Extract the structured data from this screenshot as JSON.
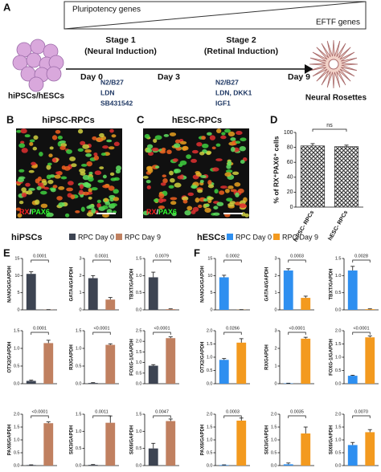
{
  "figure": {
    "panel_a": {
      "label": "A",
      "genes_top": "Pluripotency genes",
      "genes_bottom": "EFTF genes",
      "stage1": "Stage 1",
      "stage1_sub": "(Neural Induction)",
      "stage2": "Stage 2",
      "stage2_sub": "(Retinal Induction)",
      "days": [
        "Day 0",
        "Day 3",
        "Day 9"
      ],
      "stage1_reagents": [
        "N2/B27",
        "LDN",
        "SB431542"
      ],
      "stage2_reagents": [
        "N2/B27",
        "LDN, DKK1",
        "IGF1"
      ],
      "start": "hiPSCs/hESCs",
      "end": "Neural Rosettes"
    },
    "panel_b": {
      "label": "B",
      "title": "hiPSC-RPCs"
    },
    "panel_c": {
      "label": "C",
      "title": "hESC-RPCs"
    },
    "stain": [
      "RX",
      "/",
      "PAX6"
    ],
    "panel_d": {
      "label": "D"
    },
    "panel_e": {
      "label": "E",
      "title": "hiPSCs",
      "legend": [
        {
          "name": "RPC Day 0",
          "color": "#3d4452"
        },
        {
          "name": "RPC Day 9",
          "color": "#c08060"
        }
      ]
    },
    "panel_f": {
      "label": "F",
      "title": "hESCs",
      "legend": [
        {
          "name": "RPC Day 0",
          "color": "#2e8ff0"
        },
        {
          "name": "RPC Day 9",
          "color": "#f39a1f"
        }
      ]
    }
  },
  "chart_data": [
    {
      "type": "bar",
      "ylabel": "% of RX⁺PAX6⁺ cells",
      "categories": [
        "hiPSC- RPCs",
        "hESC- RPCs"
      ],
      "values": [
        82,
        81
      ],
      "errors": [
        3,
        2
      ],
      "colors": [
        "#444444",
        "#444444"
      ],
      "hatch": true,
      "ylim": [
        0,
        100
      ],
      "yticks": [
        0,
        20,
        40,
        60,
        80,
        100
      ],
      "annotation": "ns"
    },
    {
      "type": "bar",
      "ylabel": "NANOG/GAPDH",
      "categories": [
        null,
        null
      ],
      "values": [
        10.5,
        0.05
      ],
      "errors": [
        0.6,
        0.02
      ],
      "colors": [
        "#3d4452",
        "#c08060"
      ],
      "ylim": [
        0,
        15
      ],
      "yticks": [
        0,
        5,
        10,
        15
      ],
      "annotation": "0.0001"
    },
    {
      "type": "bar",
      "ylabel": "GATA4/GAPDH",
      "categories": [
        null,
        null
      ],
      "values": [
        1.85,
        0.6
      ],
      "errors": [
        0.15,
        0.12
      ],
      "colors": [
        "#3d4452",
        "#c08060"
      ],
      "ylim": [
        0,
        3
      ],
      "yticks": [
        0,
        1,
        2,
        3
      ],
      "annotation": "0.0031"
    },
    {
      "type": "bar",
      "ylabel": "TBXT/GAPDH",
      "categories": [
        null,
        null
      ],
      "values": [
        0.95,
        0.02
      ],
      "errors": [
        0.15,
        0.01
      ],
      "colors": [
        "#3d4452",
        "#c08060"
      ],
      "ylim": [
        0,
        1.5
      ],
      "yticks": [
        {
          "value": 0,
          "label": "0.0"
        },
        0.5,
        {
          "value": 1,
          "label": "1.0"
        },
        1.5
      ],
      "annotation": "0.0079"
    },
    {
      "type": "bar",
      "ylabel": "OTX2/GAPDH",
      "categories": [
        null,
        null
      ],
      "values": [
        0.08,
        1.15
      ],
      "errors": [
        0.02,
        0.08
      ],
      "colors": [
        "#3d4452",
        "#c08060"
      ],
      "ylim": [
        0,
        1.5
      ],
      "yticks": [
        {
          "value": 0,
          "label": "0.0"
        },
        0.5,
        {
          "value": 1,
          "label": "1.0"
        },
        1.5
      ],
      "annotation": "0.0001"
    },
    {
      "type": "bar",
      "ylabel": "RX/GAPDH",
      "categories": [
        null,
        null
      ],
      "values": [
        0.02,
        1.1
      ],
      "errors": [
        0.01,
        0.03
      ],
      "colors": [
        "#3d4452",
        "#c08060"
      ],
      "ylim": [
        0,
        1.5
      ],
      "yticks": [
        {
          "value": 0,
          "label": "0.0"
        },
        0.5,
        {
          "value": 1,
          "label": "1.0"
        },
        1.5
      ],
      "annotation": "<0.0001"
    },
    {
      "type": "bar",
      "ylabel": "FOXG-1/GAPDH",
      "categories": [
        null,
        null
      ],
      "values": [
        0.85,
        2.15
      ],
      "errors": [
        0.05,
        0.06
      ],
      "colors": [
        "#3d4452",
        "#c08060"
      ],
      "ylim": [
        0,
        2.5
      ],
      "yticks": [
        {
          "value": 0,
          "label": "0.0"
        },
        0.5,
        {
          "value": 1,
          "label": "1.0"
        },
        1.5,
        {
          "value": 2,
          "label": "2.0"
        },
        2.5
      ],
      "annotation": "<0.0001"
    },
    {
      "type": "bar",
      "ylabel": "PAX6/GAPDH",
      "categories": [
        null,
        null
      ],
      "values": [
        0.02,
        1.65
      ],
      "errors": [
        0.01,
        0.05
      ],
      "colors": [
        "#3d4452",
        "#c08060"
      ],
      "ylim": [
        0,
        2
      ],
      "yticks": [
        {
          "value": 0,
          "label": "0.0"
        },
        0.5,
        {
          "value": 1,
          "label": "1.0"
        },
        1.5,
        {
          "value": 2,
          "label": "2.0"
        }
      ],
      "annotation": "<0.0001"
    },
    {
      "type": "bar",
      "ylabel": "SIX3/GAPDH",
      "categories": [
        null,
        null
      ],
      "values": [
        0.02,
        1.25
      ],
      "errors": [
        0.01,
        0.2
      ],
      "colors": [
        "#3d4452",
        "#c08060"
      ],
      "ylim": [
        0,
        1.5
      ],
      "yticks": [
        {
          "value": 0,
          "label": "0.0"
        },
        0.5,
        {
          "value": 1,
          "label": "1.0"
        },
        1.5
      ],
      "annotation": "0.0011"
    },
    {
      "type": "bar",
      "ylabel": "SIX6/GAPDH",
      "categories": [
        null,
        null
      ],
      "values": [
        0.5,
        1.3
      ],
      "errors": [
        0.15,
        0.06
      ],
      "colors": [
        "#3d4452",
        "#c08060"
      ],
      "ylim": [
        0,
        1.5
      ],
      "yticks": [
        {
          "value": 0,
          "label": "0.0"
        },
        0.5,
        {
          "value": 1,
          "label": "1.0"
        },
        1.5
      ],
      "annotation": "0.0047"
    },
    {
      "type": "bar",
      "ylabel": "NANOG/GAPDH",
      "categories": [
        null,
        null
      ],
      "values": [
        9.5,
        0.05
      ],
      "errors": [
        0.6,
        0.02
      ],
      "colors": [
        "#2e8ff0",
        "#f39a1f"
      ],
      "ylim": [
        0,
        15
      ],
      "yticks": [
        0,
        5,
        10,
        15
      ],
      "annotation": "0.0002"
    },
    {
      "type": "bar",
      "ylabel": "GATA4/GAPDH",
      "categories": [
        null,
        null
      ],
      "values": [
        2.3,
        0.7
      ],
      "errors": [
        0.1,
        0.1
      ],
      "colors": [
        "#2e8ff0",
        "#f39a1f"
      ],
      "ylim": [
        0,
        3
      ],
      "yticks": [
        0,
        1,
        2,
        3
      ],
      "annotation": "0.0003"
    },
    {
      "type": "bar",
      "ylabel": "TBXT/GAPDH",
      "categories": [
        null,
        null
      ],
      "values": [
        1.15,
        0.02
      ],
      "errors": [
        0.12,
        0.01
      ],
      "colors": [
        "#2e8ff0",
        "#f39a1f"
      ],
      "ylim": [
        0,
        1.5
      ],
      "yticks": [
        {
          "value": 0,
          "label": "0.0"
        },
        0.5,
        {
          "value": 1,
          "label": "1.0"
        },
        1.5
      ],
      "annotation": "0.0028"
    },
    {
      "type": "bar",
      "ylabel": "OTX2/GAPDH",
      "categories": [
        null,
        null
      ],
      "values": [
        0.9,
        1.55
      ],
      "errors": [
        0.05,
        0.15
      ],
      "colors": [
        "#2e8ff0",
        "#f39a1f"
      ],
      "ylim": [
        0,
        2
      ],
      "yticks": [
        {
          "value": 0,
          "label": "0.0"
        },
        0.5,
        {
          "value": 1,
          "label": "1.0"
        },
        1.5,
        {
          "value": 2,
          "label": "2.0"
        }
      ],
      "annotation": "0.0266"
    },
    {
      "type": "bar",
      "ylabel": "RX/GAPDH",
      "categories": [
        null,
        null
      ],
      "values": [
        0.02,
        2.55
      ],
      "errors": [
        0.01,
        0.08
      ],
      "colors": [
        "#2e8ff0",
        "#f39a1f"
      ],
      "ylim": [
        0,
        3
      ],
      "yticks": [
        0,
        1,
        2,
        3
      ],
      "annotation": "<0.0001"
    },
    {
      "type": "bar",
      "ylabel": "FOXG-1/GAPDH",
      "categories": [
        null,
        null
      ],
      "values": [
        0.3,
        1.75
      ],
      "errors": [
        0.02,
        0.05
      ],
      "colors": [
        "#2e8ff0",
        "#f39a1f"
      ],
      "ylim": [
        0,
        2
      ],
      "yticks": [
        {
          "value": 0,
          "label": "0.0"
        },
        0.5,
        {
          "value": 1,
          "label": "1.0"
        },
        1.5,
        {
          "value": 2,
          "label": "2.0"
        }
      ],
      "annotation": "<0.0001"
    },
    {
      "type": "bar",
      "ylabel": "PAX6/GAPDH",
      "categories": [
        null,
        null
      ],
      "values": [
        0.02,
        1.75
      ],
      "errors": [
        0.01,
        0.1
      ],
      "colors": [
        "#2e8ff0",
        "#f39a1f"
      ],
      "ylim": [
        0,
        2
      ],
      "yticks": [
        {
          "value": 0,
          "label": "0.0"
        },
        0.5,
        {
          "value": 1,
          "label": "1.0"
        },
        1.5,
        {
          "value": 2,
          "label": "2.0"
        }
      ],
      "annotation": "0.0003"
    },
    {
      "type": "bar",
      "ylabel": "SIX3/GAPDH",
      "categories": [
        null,
        null
      ],
      "values": [
        0.05,
        1.25
      ],
      "errors": [
        0.05,
        0.25
      ],
      "colors": [
        "#2e8ff0",
        "#f39a1f"
      ],
      "ylim": [
        0,
        2
      ],
      "yticks": [
        {
          "value": 0,
          "label": "0.0"
        },
        0.5,
        {
          "value": 1,
          "label": "1.0"
        },
        1.5,
        {
          "value": 2,
          "label": "2.0"
        }
      ],
      "annotation": "0.0035"
    },
    {
      "type": "bar",
      "ylabel": "SIX6/GAPDH",
      "categories": [
        null,
        null
      ],
      "values": [
        0.8,
        1.3
      ],
      "errors": [
        0.1,
        0.1
      ],
      "colors": [
        "#2e8ff0",
        "#f39a1f"
      ],
      "ylim": [
        0,
        2
      ],
      "yticks": [
        {
          "value": 0,
          "label": "0.0"
        },
        0.5,
        {
          "value": 1,
          "label": "1.0"
        },
        1.5,
        {
          "value": 2,
          "label": "2.0"
        }
      ],
      "annotation": "0.0070"
    }
  ]
}
